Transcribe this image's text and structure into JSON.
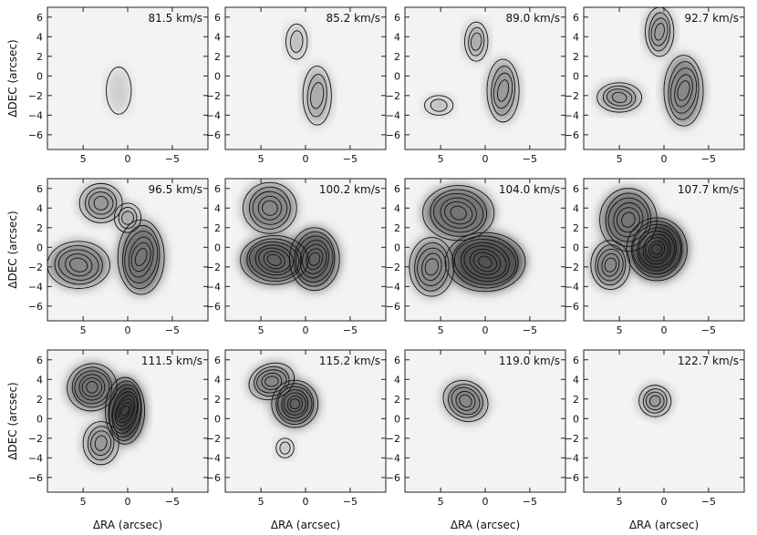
{
  "figure": {
    "x_axis_label": "ΔRA (arcsec)",
    "y_axis_label": "ΔDEC (arcsec)",
    "x_tick_labels": [
      "5",
      "0",
      "−5"
    ],
    "y_tick_labels": [
      "6",
      "4",
      "2",
      "0",
      "−2",
      "−4",
      "−6"
    ],
    "panels": [
      {
        "velocity_label": "81.5 km/s"
      },
      {
        "velocity_label": "85.2 km/s"
      },
      {
        "velocity_label": "89.0 km/s"
      },
      {
        "velocity_label": "92.7 km/s"
      },
      {
        "velocity_label": "96.5 km/s"
      },
      {
        "velocity_label": "100.2 km/s"
      },
      {
        "velocity_label": "104.0 km/s"
      },
      {
        "velocity_label": "107.7 km/s"
      },
      {
        "velocity_label": "111.5 km/s"
      },
      {
        "velocity_label": "115.2 km/s"
      },
      {
        "velocity_label": "119.0 km/s"
      },
      {
        "velocity_label": "122.7 km/s"
      }
    ]
  }
}
